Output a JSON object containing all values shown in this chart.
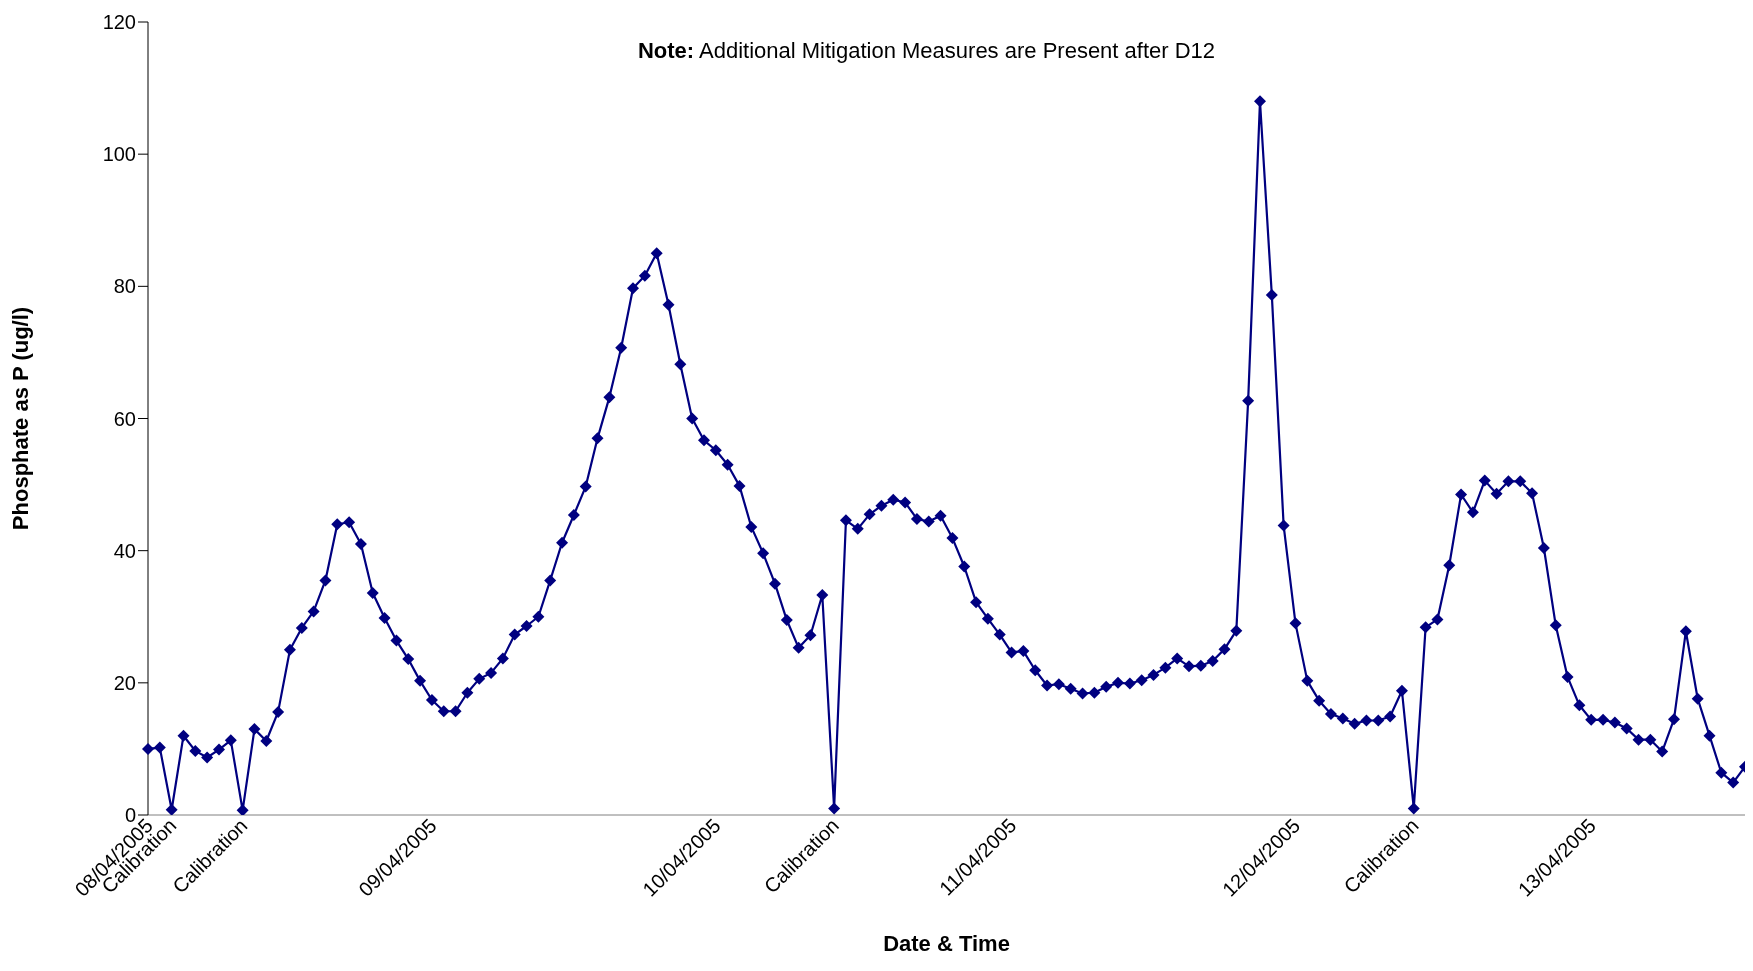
{
  "chart_data": {
    "type": "line",
    "xlabel": "Date & Time",
    "ylabel": "Phosphate as P (ug/l)",
    "annotations": [
      "Note: Additional Mitigation Measures are Present after D12"
    ],
    "categories": [
      "08/04/2005",
      null,
      "Calibration",
      null,
      null,
      null,
      null,
      null,
      "Calibration",
      null,
      null,
      null,
      null,
      null,
      null,
      null,
      null,
      null,
      null,
      null,
      null,
      null,
      null,
      null,
      "09/04/2005",
      null,
      null,
      null,
      null,
      null,
      null,
      null,
      null,
      null,
      null,
      null,
      null,
      null,
      null,
      null,
      null,
      null,
      null,
      null,
      null,
      null,
      null,
      null,
      "10/04/2005",
      null,
      null,
      null,
      null,
      null,
      null,
      null,
      null,
      null,
      "Calibration",
      null,
      null,
      null,
      null,
      null,
      null,
      null,
      null,
      null,
      null,
      null,
      null,
      null,
      null,
      "11/04/2005",
      null,
      null,
      null,
      null,
      null,
      null,
      null,
      null,
      null,
      null,
      null,
      null,
      null,
      null,
      null,
      null,
      null,
      null,
      null,
      null,
      null,
      null,
      null,
      "12/04/2005",
      null,
      null,
      null,
      null,
      null,
      null,
      null,
      null,
      null,
      "Calibration",
      null,
      null,
      null,
      null,
      null,
      null,
      null,
      null,
      null,
      null,
      null,
      null,
      null,
      null,
      "13/04/2005",
      null,
      null,
      null,
      null,
      null,
      null,
      null,
      null,
      null,
      null,
      null,
      null,
      null
    ],
    "series": [
      {
        "color": "#000080",
        "values": [
          10,
          10.2,
          0.8,
          12,
          9.7,
          8.7,
          9.9,
          11.3,
          0.7,
          13,
          11.2,
          15.6,
          25,
          28.3,
          30.8,
          35.5,
          44,
          44.3,
          41,
          33.6,
          29.8,
          26.4,
          23.6,
          20.3,
          17.4,
          15.7,
          15.7,
          18.5,
          20.6,
          21.5,
          23.7,
          27.3,
          28.6,
          30,
          35.5,
          41.2,
          45.4,
          49.7,
          57,
          63.2,
          70.7,
          79.7,
          81.6,
          85,
          77.2,
          68.2,
          60,
          56.7,
          55.2,
          53,
          49.8,
          43.6,
          39.6,
          35,
          29.5,
          25.3,
          27.2,
          33.3,
          1,
          44.6,
          43.3,
          45.5,
          46.8,
          47.7,
          47.3,
          44.8,
          44.4,
          45.3,
          41.9,
          37.6,
          32.2,
          29.7,
          27.3,
          24.6,
          24.8,
          21.9,
          19.6,
          19.8,
          19.1,
          18.4,
          18.5,
          19.4,
          20,
          19.9,
          20.4,
          21.2,
          22.3,
          23.7,
          22.5,
          22.6,
          23.3,
          25.1,
          27.9,
          62.7,
          108,
          78.7,
          43.8,
          29,
          20.3,
          17.3,
          15.3,
          14.6,
          13.8,
          14.3,
          14.3,
          14.9,
          18.8,
          1,
          28.4,
          29.6,
          37.8,
          48.5,
          45.8,
          50.6,
          48.6,
          50.5,
          50.5,
          48.7,
          40.4,
          28.7,
          20.9,
          16.6,
          14.4,
          14.4,
          14,
          13.1,
          11.4,
          11.4,
          9.6,
          14.5,
          27.8,
          17.6,
          12,
          6.4,
          4.9,
          7.3
        ]
      }
    ],
    "ylim": [
      0,
      120
    ],
    "yticks": [
      0,
      20,
      40,
      60,
      80,
      100,
      120
    ],
    "grid": false,
    "legend": false,
    "marker": "diamond",
    "line_style": "solid"
  }
}
